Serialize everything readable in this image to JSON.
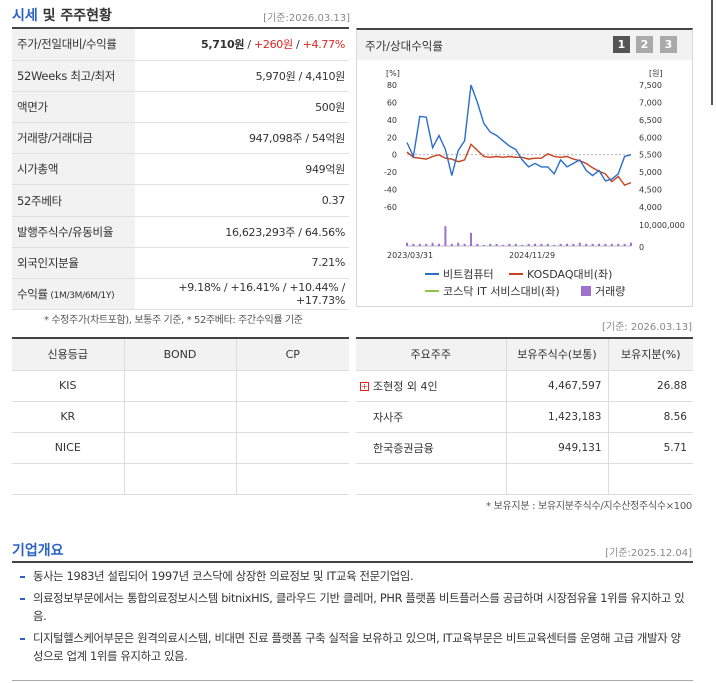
{
  "header": {
    "title_blue": "시세",
    "title_rest": " 및 주주현황",
    "date": "[기준:2026.03.13]"
  },
  "summary": [
    {
      "key": "주가/전일대비/수익률",
      "value_price": "5,710원",
      "sep1": " / ",
      "value_change": "+260원",
      "sep2": " / ",
      "value_pct": "+4.77%"
    },
    {
      "key": "52Weeks 최고/최저",
      "value": "5,970원 / 4,410원"
    },
    {
      "key": "액면가",
      "value": "500원"
    },
    {
      "key": "거래량/거래대금",
      "value": "947,098주 / 54억원"
    },
    {
      "key": "시가총액",
      "value": "949억원"
    },
    {
      "key": "52주베타",
      "value": "0.37"
    },
    {
      "key": "발행주식수/유동비율",
      "value": "16,623,293주 / 64.56%"
    },
    {
      "key": "외국인지분율",
      "value": "7.21%"
    },
    {
      "key": "수익률",
      "key_small": " (1M/3M/6M/1Y)",
      "value": "+9.18% / +16.41% / +10.44% / +17.73%"
    }
  ],
  "summary_note": "* 수정주가(차트포함), 보통주 기준, * 52주베타: 주간수익률 기준",
  "chart": {
    "title": "주가/상대수익률",
    "pages": [
      "1",
      "2",
      "3"
    ],
    "left_unit": "[%]",
    "right_unit": "[원]",
    "left_ticks": [
      "80",
      "60",
      "40",
      "20",
      "0",
      "-20",
      "-40",
      "-60"
    ],
    "right_ticks": [
      "7,500",
      "7,000",
      "6,500",
      "6,000",
      "5,500",
      "5,000",
      "4,500",
      "4,000"
    ],
    "vol_tick_top": "10,000,000",
    "vol_tick_bottom": "0",
    "x_labels": [
      "2023/03/31",
      "2024/11/29"
    ],
    "legend": {
      "s1": "비트컴퓨터",
      "s2": "KOSDAQ대비(좌)",
      "s3": "코스닥 IT 서비스대비(좌)",
      "s4": "거래량"
    },
    "colors": {
      "s1": "#2a6fc9",
      "s2": "#c8401c",
      "s3": "#8cc63f",
      "s4": "#a070d0"
    }
  },
  "chart_data": {
    "type": "line",
    "ylim_left": [
      -60,
      80
    ],
    "ylim_right": [
      4000,
      7500
    ],
    "series": [
      {
        "name": "비트컴퓨터",
        "axis": "right",
        "values": [
          5850,
          5450,
          6600,
          6580,
          5700,
          6050,
          5650,
          4900,
          5620,
          5900,
          7500,
          7000,
          6400,
          6150,
          6050,
          5900,
          5750,
          5650,
          5350,
          5150,
          5250,
          5150,
          5150,
          4950,
          5350,
          5150,
          5250,
          5350,
          5050,
          4900,
          5050,
          4750,
          4800,
          4950,
          5450,
          5500
        ]
      },
      {
        "name": "KOSDAQ대비(좌)",
        "axis": "left",
        "values": [
          3,
          -3,
          -4,
          -5,
          -2,
          0,
          -4,
          -5,
          -8,
          -6,
          12,
          5,
          -2,
          -3,
          -2,
          -3,
          -2,
          -3,
          -3,
          -5,
          -4,
          -4,
          1,
          -2,
          -3,
          -2,
          -5,
          -7,
          -10,
          -15,
          -19,
          -22,
          -31,
          -25,
          -35,
          -32
        ]
      },
      {
        "name": "거래량",
        "axis": "volume",
        "values": [
          0.3,
          0.2,
          0.2,
          0.2,
          0.3,
          0.2,
          1.8,
          0.2,
          0.3,
          0.2,
          1.2,
          0.2,
          0.1,
          0.2,
          0.2,
          0.1,
          0.2,
          0.2,
          0.1,
          0.2,
          0.2,
          0.2,
          0.2,
          0.1,
          0.2,
          0.2,
          0.2,
          0.3,
          0.2,
          0.2,
          0.2,
          0.2,
          0.2,
          0.2,
          0.2,
          0.3
        ]
      }
    ]
  },
  "credit": {
    "headers": [
      "신용등급",
      "BOND",
      "CP"
    ],
    "rows": [
      [
        "KIS",
        "",
        ""
      ],
      [
        "KR",
        "",
        ""
      ],
      [
        "NICE",
        "",
        ""
      ],
      [
        "",
        "",
        ""
      ]
    ]
  },
  "shareholders": {
    "headers": [
      "주요주주",
      "보유주식수(보통)",
      "보유지분(%)"
    ],
    "rows": [
      {
        "name": "조현정 외 4인",
        "shares": "4,467,597",
        "pct": "26.88",
        "expand": "+"
      },
      {
        "name": "자사주",
        "shares": "1,423,183",
        "pct": "8.56"
      },
      {
        "name": "한국증권금융",
        "shares": "949,131",
        "pct": "5.71"
      }
    ]
  },
  "shareholder_date": "[기준: 2026.03.13]",
  "shareholder_note": "* 보유지분 : 보유지분주식수/지수산정주식수×100",
  "overview": {
    "title": "기업개요",
    "date": "[기준:2025.12.04]",
    "items": [
      "동사는 1983년 설립되어 1997년 코스닥에 상장한 의료정보 및 IT교육 전문기업임.",
      "의료정보부문에서는 통합의료정보시스템 bitnixHIS, 클라우드 기반 클레머, PHR 플랫폼 비트플러스를 공급하며 시장점유율 1위를 유지하고 있음.",
      "디지털헬스케어부문은 원격의료시스템, 비대면 진료 플랫폼 구축 실적을 보유하고 있으며, IT교육부문은 비트교육센터를 운영해 고급 개발자 양성으로 업계 1위를 유지하고 있음."
    ]
  }
}
